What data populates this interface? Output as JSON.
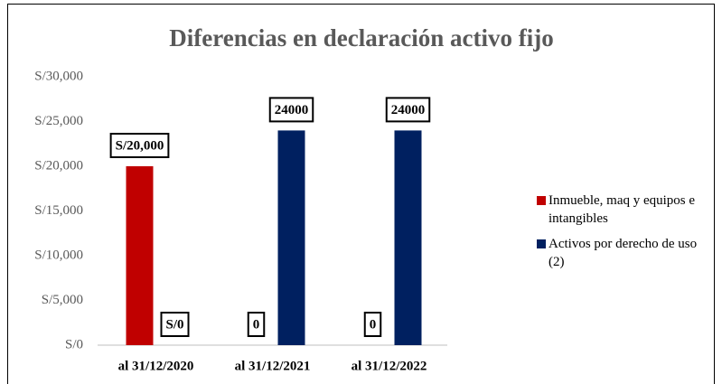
{
  "chart_data": {
    "type": "bar",
    "title": "Diferencias en declaración activo fijo",
    "categories": [
      "al 31/12/2020",
      "al 31/12/2021",
      "al 31/12/2022"
    ],
    "series": [
      {
        "name": "Inmueble, maq y equipos e intangibles",
        "color": "#c00000",
        "values": [
          20000,
          0,
          0
        ],
        "value_labels": [
          "S/20,000",
          "0",
          "0"
        ]
      },
      {
        "name": "Activos por derecho de uso (2)",
        "color": "#002060",
        "values": [
          0,
          24000,
          24000
        ],
        "value_labels": [
          "S/0",
          "24000",
          "24000"
        ]
      }
    ],
    "ylim": [
      0,
      30000
    ],
    "yticks": [
      {
        "value": 0,
        "label": "S/0"
      },
      {
        "value": 5000,
        "label": "S/5,000"
      },
      {
        "value": 10000,
        "label": "S/10,000"
      },
      {
        "value": 15000,
        "label": "S/15,000"
      },
      {
        "value": 20000,
        "label": "S/20,000"
      },
      {
        "value": 25000,
        "label": "S/25,000"
      },
      {
        "value": 30000,
        "label": "S/30,000"
      }
    ],
    "grid": false,
    "legend": "right"
  }
}
